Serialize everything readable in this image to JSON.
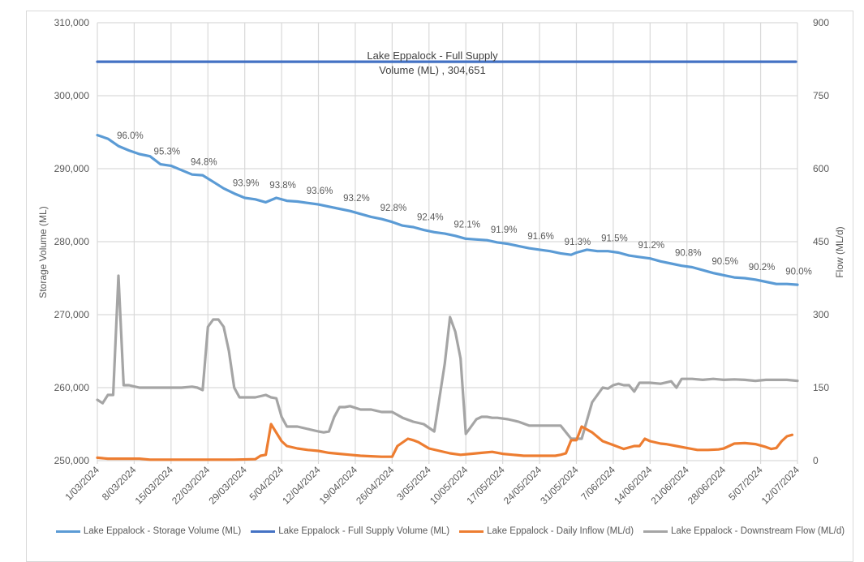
{
  "chart_data": {
    "type": "line",
    "title": "",
    "xlabel": "",
    "ylabel": "Storage Volume (ML)",
    "y2label": "Flow (ML/d)",
    "ylim": [
      250000,
      310000
    ],
    "y2lim": [
      0,
      900
    ],
    "y_ticks": [
      "250,000",
      "260,000",
      "270,000",
      "280,000",
      "290,000",
      "300,000",
      "310,000"
    ],
    "y2_ticks": [
      "0",
      "150",
      "300",
      "450",
      "600",
      "750",
      "900"
    ],
    "x_ticks": [
      "1/03/2024",
      "8/03/2024",
      "15/03/2024",
      "22/03/2024",
      "29/03/2024",
      "5/04/2024",
      "12/04/2024",
      "19/04/2024",
      "26/04/2024",
      "3/05/2024",
      "10/05/2024",
      "17/05/2024",
      "24/05/2024",
      "31/05/2024",
      "7/06/2024",
      "14/06/2024",
      "21/06/2024",
      "28/06/2024",
      "5/07/2024",
      "12/07/2024"
    ],
    "grid": true,
    "legend_position": "bottom",
    "annotation": {
      "line1": "Lake Eppalock - Full Supply",
      "line2": "Volume (ML) ,  304,651"
    },
    "percent_labels": [
      {
        "day": 5,
        "label": "96.0%"
      },
      {
        "day": 12,
        "label": "95.3%"
      },
      {
        "day": 19,
        "label": "94.8%"
      },
      {
        "day": 27,
        "label": "93.9%"
      },
      {
        "day": 34,
        "label": "93.8%"
      },
      {
        "day": 41,
        "label": "93.6%"
      },
      {
        "day": 48,
        "label": "93.2%"
      },
      {
        "day": 55,
        "label": "92.8%"
      },
      {
        "day": 62,
        "label": "92.4%"
      },
      {
        "day": 69,
        "label": "92.1%"
      },
      {
        "day": 76,
        "label": "91.9%"
      },
      {
        "day": 83,
        "label": "91.6%"
      },
      {
        "day": 90,
        "label": "91.3%"
      },
      {
        "day": 97,
        "label": "91.5%"
      },
      {
        "day": 104,
        "label": "91.2%"
      },
      {
        "day": 111,
        "label": "90.8%"
      },
      {
        "day": 118,
        "label": "90.5%"
      },
      {
        "day": 125,
        "label": "90.2%"
      },
      {
        "day": 132,
        "label": "90.0%"
      }
    ],
    "series": [
      {
        "name": "Lake Eppalock - Storage Volume (ML)",
        "color": "#5b9bd5",
        "axis": "left",
        "x_days": [
          0,
          2,
          4,
          6,
          8,
          10,
          12,
          14,
          16,
          18,
          20,
          22,
          24,
          26,
          28,
          30,
          32,
          34,
          36,
          38,
          40,
          42,
          44,
          46,
          48,
          50,
          52,
          54,
          56,
          58,
          60,
          62,
          64,
          66,
          68,
          70,
          72,
          74,
          76,
          78,
          80,
          82,
          84,
          86,
          88,
          90,
          91,
          93,
          95,
          97,
          99,
          101,
          103,
          105,
          107,
          109,
          111,
          113,
          115,
          117,
          119,
          121,
          123,
          125,
          127,
          129,
          131,
          133
        ],
        "values": [
          294600,
          294100,
          293100,
          292500,
          292000,
          291700,
          290600,
          290400,
          289800,
          289200,
          289100,
          288200,
          287300,
          286600,
          286000,
          285800,
          285400,
          286000,
          285600,
          285500,
          285300,
          285100,
          284800,
          284500,
          284200,
          283800,
          283400,
          283100,
          282700,
          282200,
          282000,
          281600,
          281300,
          281100,
          280800,
          280400,
          280300,
          280200,
          279900,
          279700,
          279400,
          279100,
          278900,
          278700,
          278400,
          278200,
          278500,
          278900,
          278700,
          278700,
          278500,
          278100,
          277900,
          277700,
          277300,
          277000,
          276700,
          276500,
          276100,
          275700,
          275400,
          275100,
          275000,
          274800,
          274500,
          274200,
          274200,
          274100
        ]
      },
      {
        "name": "Lake Eppalock - Full Supply Volume (ML)",
        "color": "#4472c4",
        "axis": "left",
        "constant": 304651
      },
      {
        "name": "Lake Eppalock - Daily Inflow (ML/d)",
        "color": "#ed7d31",
        "axis": "right",
        "x_days": [
          0,
          2,
          4,
          6,
          8,
          10,
          14,
          20,
          26,
          30,
          31,
          32,
          33,
          35,
          36,
          38,
          40,
          42,
          44,
          46,
          48,
          50,
          52,
          54,
          56,
          57,
          59,
          60,
          61,
          63,
          65,
          67,
          69,
          71,
          73,
          75,
          77,
          79,
          81,
          83,
          85,
          87,
          88,
          89,
          90,
          91,
          92,
          94,
          96,
          98,
          100,
          102,
          103,
          104,
          105,
          107,
          108,
          110,
          112,
          114,
          116,
          118,
          119,
          121,
          123,
          125,
          127,
          128,
          129,
          130,
          131,
          132
        ],
        "values": [
          6,
          4,
          4,
          4,
          4,
          2,
          2,
          2,
          2,
          3,
          10,
          12,
          75,
          40,
          30,
          25,
          22,
          20,
          16,
          14,
          12,
          10,
          9,
          8,
          8,
          30,
          45,
          42,
          38,
          25,
          20,
          15,
          12,
          14,
          16,
          18,
          14,
          12,
          10,
          10,
          10,
          10,
          12,
          15,
          42,
          42,
          70,
          58,
          40,
          32,
          24,
          30,
          30,
          45,
          40,
          35,
          34,
          30,
          26,
          22,
          22,
          23,
          25,
          35,
          36,
          34,
          28,
          24,
          26,
          40,
          50,
          53
        ]
      },
      {
        "name": "Lake Eppalock - Downstream Flow (ML/d)",
        "color": "#a5a5a5",
        "axis": "right",
        "x_days": [
          0,
          1,
          2,
          3,
          4,
          5,
          6,
          8,
          12,
          16,
          18,
          19,
          20,
          21,
          22,
          23,
          24,
          25,
          26,
          27,
          28,
          29,
          30,
          32,
          33,
          34,
          35,
          36,
          37,
          38,
          40,
          42,
          43,
          44,
          45,
          46,
          47,
          48,
          50,
          52,
          54,
          56,
          58,
          60,
          62,
          64,
          66,
          67,
          68,
          69,
          70,
          71,
          72,
          73,
          74,
          75,
          76,
          78,
          80,
          82,
          83,
          84,
          86,
          88,
          90,
          92,
          94,
          96,
          97,
          98,
          99,
          100,
          101,
          102,
          103,
          104,
          105,
          107,
          109,
          110,
          111,
          113,
          115,
          117,
          119,
          121,
          123,
          125,
          127,
          129,
          131,
          133
        ],
        "values": [
          125,
          118,
          135,
          135,
          380,
          155,
          155,
          150,
          150,
          150,
          152,
          150,
          145,
          275,
          290,
          290,
          275,
          225,
          150,
          130,
          130,
          130,
          130,
          135,
          130,
          128,
          90,
          70,
          70,
          70,
          65,
          60,
          58,
          60,
          90,
          110,
          110,
          112,
          105,
          105,
          100,
          100,
          88,
          80,
          75,
          60,
          200,
          295,
          265,
          210,
          55,
          70,
          85,
          90,
          90,
          88,
          88,
          85,
          80,
          72,
          72,
          72,
          72,
          72,
          45,
          45,
          120,
          150,
          148,
          155,
          158,
          155,
          155,
          142,
          160,
          160,
          160,
          158,
          163,
          150,
          168,
          168,
          166,
          168,
          166,
          167,
          166,
          164,
          166,
          166,
          166,
          164
        ]
      }
    ]
  },
  "legend": {
    "items": [
      {
        "label": "Lake Eppalock - Storage Volume (ML)",
        "color": "#5b9bd5"
      },
      {
        "label": "Lake Eppalock - Full Supply Volume (ML)",
        "color": "#4472c4"
      },
      {
        "label": "Lake Eppalock - Daily Inflow (ML/d)",
        "color": "#ed7d31"
      },
      {
        "label": "Lake Eppalock - Downstream Flow (ML/d)",
        "color": "#a5a5a5"
      }
    ]
  }
}
